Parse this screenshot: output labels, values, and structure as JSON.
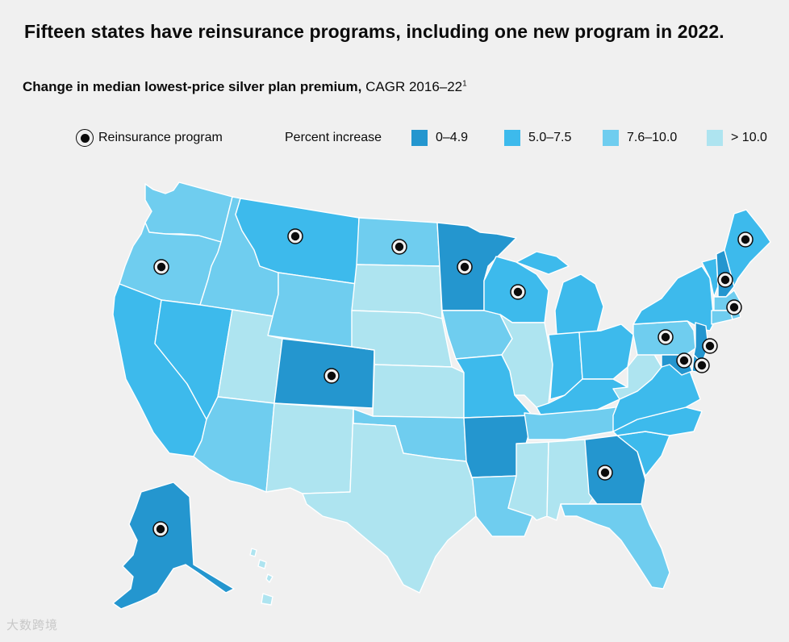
{
  "title": "Fifteen states have reinsurance programs, including one new program in 2022.",
  "subtitle": {
    "bold": "Change in median lowest-price silver plan premium,",
    "rest": " CAGR 2016–22",
    "footnote": "1"
  },
  "legend": {
    "marker_label": "Reinsurance program",
    "scale_title": "Percent increase",
    "bins": [
      {
        "label": "0–4.9",
        "color": "#2496cf"
      },
      {
        "label": "5.0–7.5",
        "color": "#3dbaec"
      },
      {
        "label": "7.6–10.0",
        "color": "#6fcdef"
      },
      {
        "label": "> 10.0",
        "color": "#aee4f0"
      }
    ]
  },
  "colors": {
    "background": "#f0f0f0",
    "border": "#ffffff",
    "marker": "#0b0b0b"
  },
  "states": [
    {
      "abbr": "WA",
      "bin": 2,
      "reinsurance": false
    },
    {
      "abbr": "OR",
      "bin": 2,
      "reinsurance": true
    },
    {
      "abbr": "CA",
      "bin": 1,
      "reinsurance": false
    },
    {
      "abbr": "ID",
      "bin": 2,
      "reinsurance": false
    },
    {
      "abbr": "NV",
      "bin": 1,
      "reinsurance": false
    },
    {
      "abbr": "MT",
      "bin": 1,
      "reinsurance": true
    },
    {
      "abbr": "WY",
      "bin": 2,
      "reinsurance": false
    },
    {
      "abbr": "UT",
      "bin": 3,
      "reinsurance": false
    },
    {
      "abbr": "AZ",
      "bin": 2,
      "reinsurance": false
    },
    {
      "abbr": "CO",
      "bin": 0,
      "reinsurance": true
    },
    {
      "abbr": "NM",
      "bin": 3,
      "reinsurance": false
    },
    {
      "abbr": "ND",
      "bin": 2,
      "reinsurance": true
    },
    {
      "abbr": "SD",
      "bin": 3,
      "reinsurance": false
    },
    {
      "abbr": "NE",
      "bin": 3,
      "reinsurance": false
    },
    {
      "abbr": "KS",
      "bin": 3,
      "reinsurance": false
    },
    {
      "abbr": "OK",
      "bin": 2,
      "reinsurance": false
    },
    {
      "abbr": "TX",
      "bin": 3,
      "reinsurance": false
    },
    {
      "abbr": "MN",
      "bin": 0,
      "reinsurance": true
    },
    {
      "abbr": "IA",
      "bin": 2,
      "reinsurance": false
    },
    {
      "abbr": "MO",
      "bin": 1,
      "reinsurance": false
    },
    {
      "abbr": "AR",
      "bin": 0,
      "reinsurance": false
    },
    {
      "abbr": "LA",
      "bin": 2,
      "reinsurance": false
    },
    {
      "abbr": "WI",
      "bin": 1,
      "reinsurance": true
    },
    {
      "abbr": "IL",
      "bin": 3,
      "reinsurance": false
    },
    {
      "abbr": "MI",
      "bin": 1,
      "reinsurance": false
    },
    {
      "abbr": "IN",
      "bin": 1,
      "reinsurance": false
    },
    {
      "abbr": "OH",
      "bin": 1,
      "reinsurance": false
    },
    {
      "abbr": "KY",
      "bin": 1,
      "reinsurance": false
    },
    {
      "abbr": "TN",
      "bin": 2,
      "reinsurance": false
    },
    {
      "abbr": "MS",
      "bin": 3,
      "reinsurance": false
    },
    {
      "abbr": "AL",
      "bin": 3,
      "reinsurance": false
    },
    {
      "abbr": "GA",
      "bin": 0,
      "reinsurance": true
    },
    {
      "abbr": "FL",
      "bin": 2,
      "reinsurance": false
    },
    {
      "abbr": "SC",
      "bin": 1,
      "reinsurance": false
    },
    {
      "abbr": "NC",
      "bin": 1,
      "reinsurance": false
    },
    {
      "abbr": "VA",
      "bin": 1,
      "reinsurance": false
    },
    {
      "abbr": "WV",
      "bin": 3,
      "reinsurance": false
    },
    {
      "abbr": "PA",
      "bin": 2,
      "reinsurance": true
    },
    {
      "abbr": "NY",
      "bin": 1,
      "reinsurance": false
    },
    {
      "abbr": "VT",
      "bin": 1,
      "reinsurance": false
    },
    {
      "abbr": "NH",
      "bin": 0,
      "reinsurance": true
    },
    {
      "abbr": "ME",
      "bin": 1,
      "reinsurance": true
    },
    {
      "abbr": "MA",
      "bin": 2,
      "reinsurance": false
    },
    {
      "abbr": "RI",
      "bin": 2,
      "reinsurance": true
    },
    {
      "abbr": "CT",
      "bin": 2,
      "reinsurance": false
    },
    {
      "abbr": "NJ",
      "bin": 0,
      "reinsurance": true
    },
    {
      "abbr": "DE",
      "bin": 0,
      "reinsurance": true
    },
    {
      "abbr": "MD",
      "bin": 0,
      "reinsurance": true
    },
    {
      "abbr": "AK",
      "bin": 0,
      "reinsurance": true
    },
    {
      "abbr": "HI",
      "bin": 3,
      "reinsurance": false
    }
  ],
  "watermark": "大数跨境"
}
